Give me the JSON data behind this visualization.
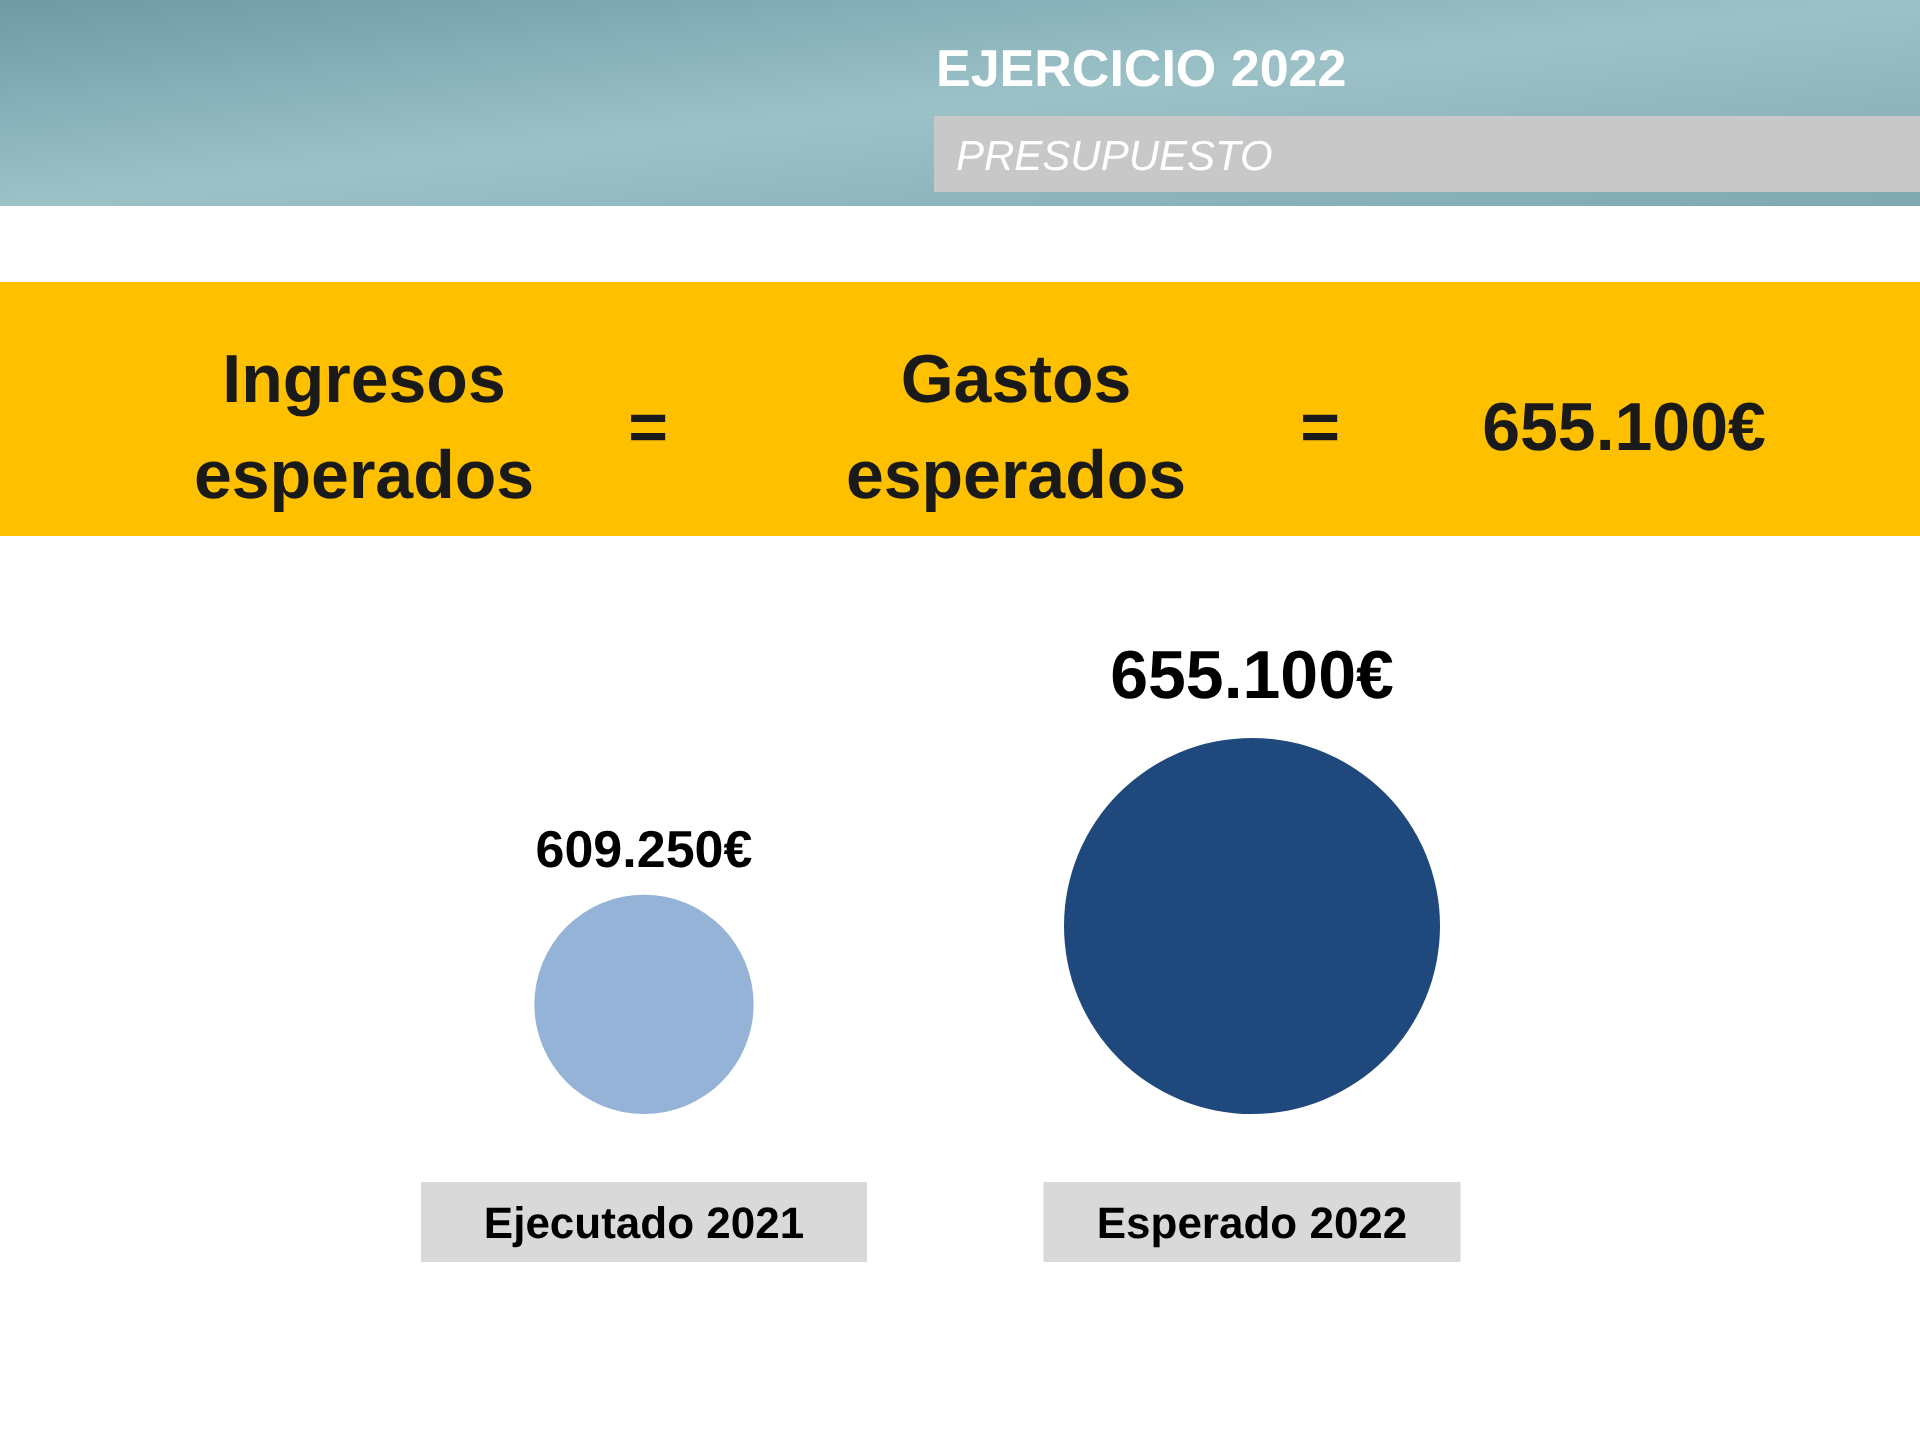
{
  "chart_data": {
    "type": "bubble",
    "title": "EJERCICIO 2022",
    "subtitle": "PRESUPUESTO",
    "annotations": [
      "Ingresos esperados",
      "=",
      "Gastos esperados",
      "=",
      "655.100€"
    ],
    "categories": [
      "Ejecutado 2021",
      "Esperado 2022"
    ],
    "values": [
      609250,
      655100
    ],
    "sizes": [
      0.34,
      1
    ],
    "colors": [
      "#95b3d7",
      "#1f497d"
    ],
    "value_labels": [
      "609.250€",
      "655.100€"
    ]
  }
}
